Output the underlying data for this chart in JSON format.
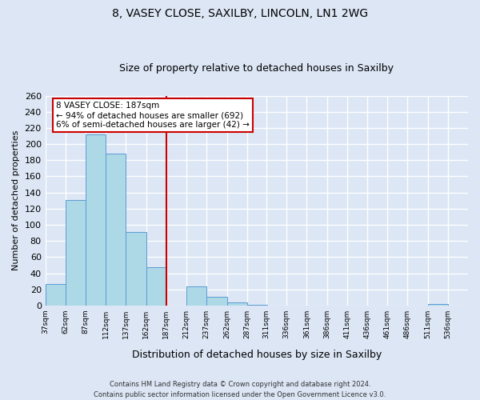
{
  "title": "8, VASEY CLOSE, SAXILBY, LINCOLN, LN1 2WG",
  "subtitle": "Size of property relative to detached houses in Saxilby",
  "xlabel": "Distribution of detached houses by size in Saxilby",
  "ylabel": "Number of detached properties",
  "bar_values": [
    27,
    131,
    212,
    188,
    91,
    47,
    0,
    24,
    11,
    4,
    1,
    0,
    0,
    0,
    0,
    0,
    0,
    0,
    0,
    2,
    0
  ],
  "bin_edges": [
    37,
    62,
    87,
    112,
    137,
    162,
    187,
    212,
    237,
    262,
    287,
    311,
    336,
    361,
    386,
    411,
    436,
    461,
    486,
    511,
    536,
    561
  ],
  "tick_labels": [
    "37sqm",
    "62sqm",
    "87sqm",
    "112sqm",
    "137sqm",
    "162sqm",
    "187sqm",
    "212sqm",
    "237sqm",
    "262sqm",
    "287sqm",
    "311sqm",
    "336sqm",
    "361sqm",
    "386sqm",
    "411sqm",
    "436sqm",
    "461sqm",
    "486sqm",
    "511sqm",
    "536sqm"
  ],
  "ylim": [
    0,
    260
  ],
  "yticks": [
    0,
    20,
    40,
    60,
    80,
    100,
    120,
    140,
    160,
    180,
    200,
    220,
    240,
    260
  ],
  "bar_color": "#add8e6",
  "bar_edge_color": "#5b9bd5",
  "vline_x": 187,
  "vline_color": "#cc0000",
  "annotation_title": "8 VASEY CLOSE: 187sqm",
  "annotation_line1": "← 94% of detached houses are smaller (692)",
  "annotation_line2": "6% of semi-detached houses are larger (42) →",
  "annotation_box_color": "#ffffff",
  "annotation_box_edge": "#cc0000",
  "footer_line1": "Contains HM Land Registry data © Crown copyright and database right 2024.",
  "footer_line2": "Contains public sector information licensed under the Open Government Licence v3.0.",
  "background_color": "#dce6f5",
  "plot_bg_color": "#dce6f5",
  "grid_color": "#ffffff"
}
